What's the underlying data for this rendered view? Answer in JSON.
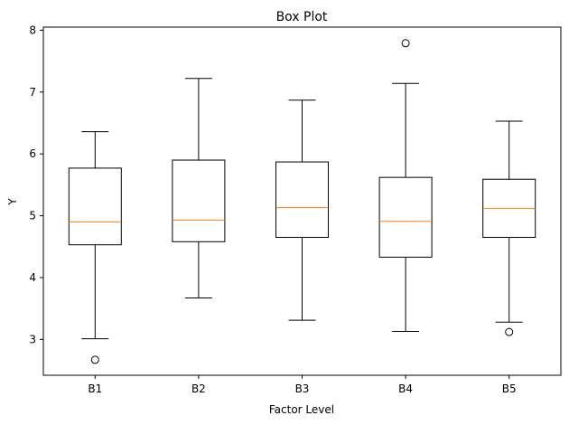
{
  "chart_data": {
    "type": "box",
    "title": "Box Plot",
    "xlabel": "Factor Level",
    "ylabel": "Y",
    "ylim": [
      2.42,
      8.05
    ],
    "yticks": [
      3,
      4,
      5,
      6,
      7,
      8
    ],
    "grid": false,
    "categories": [
      "B1",
      "B2",
      "B3",
      "B4",
      "B5"
    ],
    "boxes": [
      {
        "label": "B1",
        "whisker_low": 3.01,
        "q1": 4.53,
        "median": 4.9,
        "q3": 5.77,
        "whisker_high": 6.36,
        "outliers": [
          2.67
        ]
      },
      {
        "label": "B2",
        "whisker_low": 3.67,
        "q1": 4.58,
        "median": 4.93,
        "q3": 5.9,
        "whisker_high": 7.22,
        "outliers": []
      },
      {
        "label": "B3",
        "whisker_low": 3.31,
        "q1": 4.65,
        "median": 5.13,
        "q3": 5.87,
        "whisker_high": 6.87,
        "outliers": []
      },
      {
        "label": "B4",
        "whisker_low": 3.13,
        "q1": 4.33,
        "median": 4.91,
        "q3": 5.62,
        "whisker_high": 7.14,
        "outliers": [
          7.79
        ]
      },
      {
        "label": "B5",
        "whisker_low": 3.28,
        "q1": 4.65,
        "median": 5.12,
        "q3": 5.59,
        "whisker_high": 6.53,
        "outliers": [
          3.12
        ]
      }
    ],
    "colors": {
      "box": "#000000",
      "median": "#ff7f0e",
      "background": "#ffffff"
    }
  }
}
